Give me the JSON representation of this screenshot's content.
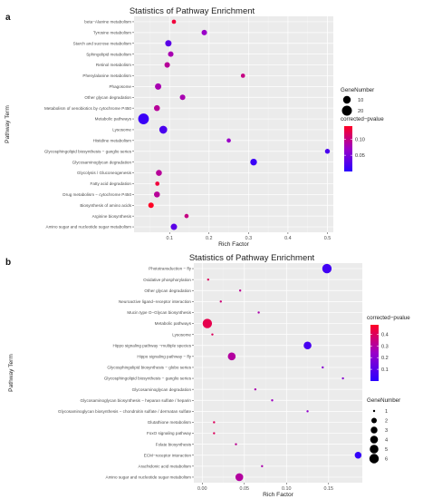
{
  "chart_data": [
    {
      "panel": "a",
      "type": "scatter",
      "title": "Statistics of Pathway Enrichment",
      "xlabel": "Rich Factor",
      "ylabel": "Pathway Term",
      "xlim": [
        0.01,
        0.515
      ],
      "x_ticks": [
        0.1,
        0.2,
        0.3,
        0.4,
        0.5
      ],
      "x_tick_labels": [
        "0.1",
        "0.2",
        "0.3",
        "0.4",
        "0.5"
      ],
      "size_legend": {
        "title": "GeneNumber",
        "values": [
          10,
          20
        ],
        "labels": [
          "10",
          "20"
        ],
        "range": [
          1,
          25
        ]
      },
      "color_legend": {
        "title": "corrected−pvalue",
        "ticks": [
          0.05,
          0.1
        ],
        "tick_labels": [
          "0.05",
          "0.10"
        ],
        "range": [
          0.0,
          0.14
        ],
        "low_color": "#2a00ff",
        "high_color": "#ff0024"
      },
      "categories": [
        "beta−Alanine metabolism",
        "Tyrosine metabolism",
        "Starch and sucrose metabolism",
        "Sphingolipid metabolism",
        "Retinol metabolism",
        "Phenylalanine metabolism",
        "Phagosome",
        "Other glycan degradation",
        "Metabolism of xenobiotics by cytochrome P450",
        "Metabolic pathways",
        "Lysosome",
        "Histidine metabolism",
        "Glycosphingolipid biosynthesis − ganglio series",
        "Glycosaminoglycan degradation",
        "Glycolysis / Gluconeogenesis",
        "Fatty acid degradation",
        "Drug metabolism − cytochrome P450",
        "Biosynthesis of amino acids",
        "Arginine biosynthesis",
        "Amino sugar and nucleotide sugar metabolism"
      ],
      "points": [
        {
          "term": "beta−Alanine metabolism",
          "rich_factor": 0.111,
          "gene_number": 2,
          "pvalue": 0.13
        },
        {
          "term": "Tyrosine metabolism",
          "rich_factor": 0.188,
          "gene_number": 4,
          "pvalue": 0.07
        },
        {
          "term": "Starch and sucrose metabolism",
          "rich_factor": 0.097,
          "gene_number": 6,
          "pvalue": 0.03
        },
        {
          "term": "Sphingolipid metabolism",
          "rich_factor": 0.103,
          "gene_number": 4,
          "pvalue": 0.08
        },
        {
          "term": "Retinol metabolism",
          "rich_factor": 0.094,
          "gene_number": 4,
          "pvalue": 0.09
        },
        {
          "term": "Phenylalanine metabolism",
          "rich_factor": 0.286,
          "gene_number": 2,
          "pvalue": 0.1
        },
        {
          "term": "Phagosome",
          "rich_factor": 0.071,
          "gene_number": 6,
          "pvalue": 0.08
        },
        {
          "term": "Other glycan degradation",
          "rich_factor": 0.133,
          "gene_number": 4,
          "pvalue": 0.08
        },
        {
          "term": "Metabolism of xenobiotics by cytochrome P450",
          "rich_factor": 0.068,
          "gene_number": 5,
          "pvalue": 0.09
        },
        {
          "term": "Metabolic pathways",
          "rich_factor": 0.034,
          "gene_number": 24,
          "pvalue": 0.01
        },
        {
          "term": "Lysosome",
          "rich_factor": 0.084,
          "gene_number": 11,
          "pvalue": 0.02
        },
        {
          "term": "Histidine metabolism",
          "rich_factor": 0.25,
          "gene_number": 2,
          "pvalue": 0.07
        },
        {
          "term": "Glycosphingolipid biosynthesis − ganglio series",
          "rich_factor": 0.5,
          "gene_number": 3,
          "pvalue": 0.02
        },
        {
          "term": "Glycosaminoglycan degradation",
          "rich_factor": 0.313,
          "gene_number": 7,
          "pvalue": 0.01
        },
        {
          "term": "Glycolysis / Gluconeogenesis",
          "rich_factor": 0.073,
          "gene_number": 5,
          "pvalue": 0.09
        },
        {
          "term": "Fatty acid degradation",
          "rich_factor": 0.069,
          "gene_number": 2,
          "pvalue": 0.13
        },
        {
          "term": "Drug metabolism − cytochrome P450",
          "rich_factor": 0.068,
          "gene_number": 5,
          "pvalue": 0.09
        },
        {
          "term": "Biosynthesis of amino acids",
          "rich_factor": 0.053,
          "gene_number": 4,
          "pvalue": 0.14
        },
        {
          "term": "Arginine biosynthesis",
          "rich_factor": 0.143,
          "gene_number": 2,
          "pvalue": 0.1
        },
        {
          "term": "Amino sugar and nucleotide sugar metabolism",
          "rich_factor": 0.111,
          "gene_number": 6,
          "pvalue": 0.03
        }
      ]
    },
    {
      "panel": "b",
      "type": "scatter",
      "title": "Statistics of Pathway Enrichment",
      "xlabel": "Rich Factor",
      "ylabel": "Pathway Term",
      "xlim": [
        -0.01,
        0.19
      ],
      "x_ticks": [
        0.0,
        0.05,
        0.1,
        0.15
      ],
      "x_tick_labels": [
        "0.00",
        "0.05",
        "0.10",
        "0.15"
      ],
      "size_legend": {
        "title": "GeneNumber",
        "values": [
          1,
          2,
          3,
          4,
          5,
          6
        ],
        "labels": [
          "1",
          "2",
          "3",
          "4",
          "5",
          "6"
        ],
        "range": [
          1,
          6
        ]
      },
      "color_legend": {
        "title": "corrected−pvalue",
        "ticks": [
          0.1,
          0.2,
          0.3,
          0.4
        ],
        "tick_labels": [
          "0.1",
          "0.2",
          "0.3",
          "0.4"
        ],
        "range": [
          0.0,
          0.48
        ],
        "low_color": "#2a00ff",
        "high_color": "#ff0024"
      },
      "categories": [
        "Phototransduction − fly",
        "Oxidative phosphorylation",
        "Other glycan degradation",
        "Neuroactive ligand−receptor interaction",
        "Mucin type O−Glycan biosynthesis",
        "Metabolic pathways",
        "Lysosome",
        "Hippo signaling pathway −multiple species",
        "Hippo signaling pathway − fly",
        "Glycosphingolipid biosynthesis − globo series",
        "Glycosphingolipid biosynthesis − ganglio series",
        "Glycosaminoglycan degradation",
        "Glycosaminoglycan biosynthesis − heparan sulfate / heparin",
        "Glycosaminoglycan biosynthesis − chondroitin sulfate / dermatan sulfate",
        "Glutathione metabolism",
        "FoxO signaling pathway",
        "Folate biosynthesis",
        "ECM−receptor interaction",
        "Arachidonic acid metabolism",
        "Amino sugar and nucleotide sugar metabolism"
      ],
      "points": [
        {
          "term": "Phototransduction − fly",
          "rich_factor": 0.148,
          "gene_number": 6,
          "pvalue": 0.05
        },
        {
          "term": "Oxidative phosphorylation",
          "rich_factor": 0.007,
          "gene_number": 1,
          "pvalue": 0.4
        },
        {
          "term": "Other glycan degradation",
          "rich_factor": 0.045,
          "gene_number": 1,
          "pvalue": 0.32
        },
        {
          "term": "Neuroactive ligand−receptor interaction",
          "rich_factor": 0.022,
          "gene_number": 1,
          "pvalue": 0.36
        },
        {
          "term": "Mucin type O−Glycan biosynthesis",
          "rich_factor": 0.067,
          "gene_number": 1,
          "pvalue": 0.28
        },
        {
          "term": "Metabolic pathways",
          "rich_factor": 0.006,
          "gene_number": 6,
          "pvalue": 0.42
        },
        {
          "term": "Lysosome",
          "rich_factor": 0.012,
          "gene_number": 1,
          "pvalue": 0.4
        },
        {
          "term": "Hippo signaling pathway −multiple species",
          "rich_factor": 0.125,
          "gene_number": 4,
          "pvalue": 0.06
        },
        {
          "term": "Hippo signaling pathway − fly",
          "rich_factor": 0.035,
          "gene_number": 4,
          "pvalue": 0.3
        },
        {
          "term": "Glycosphingolipid biosynthesis − globo series",
          "rich_factor": 0.143,
          "gene_number": 1,
          "pvalue": 0.2
        },
        {
          "term": "Glycosphingolipid biosynthesis − ganglio series",
          "rich_factor": 0.167,
          "gene_number": 1,
          "pvalue": 0.2
        },
        {
          "term": "Glycosaminoglycan degradation",
          "rich_factor": 0.063,
          "gene_number": 1,
          "pvalue": 0.28
        },
        {
          "term": "Glycosaminoglycan biosynthesis − heparan sulfate / heparin",
          "rich_factor": 0.083,
          "gene_number": 1,
          "pvalue": 0.25
        },
        {
          "term": "Glycosaminoglycan biosynthesis − chondroitin sulfate / dermatan sulfate",
          "rich_factor": 0.125,
          "gene_number": 1,
          "pvalue": 0.22
        },
        {
          "term": "Glutathione metabolism",
          "rich_factor": 0.014,
          "gene_number": 1,
          "pvalue": 0.4
        },
        {
          "term": "FoxO signaling pathway",
          "rich_factor": 0.014,
          "gene_number": 1,
          "pvalue": 0.4
        },
        {
          "term": "Folate biosynthesis",
          "rich_factor": 0.04,
          "gene_number": 1,
          "pvalue": 0.32
        },
        {
          "term": "ECM−receptor interaction",
          "rich_factor": 0.185,
          "gene_number": 3,
          "pvalue": 0.02
        },
        {
          "term": "Arachidonic acid metabolism",
          "rich_factor": 0.071,
          "gene_number": 1,
          "pvalue": 0.28
        },
        {
          "term": "Amino sugar and nucleotide sugar metabolism",
          "rich_factor": 0.044,
          "gene_number": 4,
          "pvalue": 0.3
        }
      ]
    }
  ]
}
